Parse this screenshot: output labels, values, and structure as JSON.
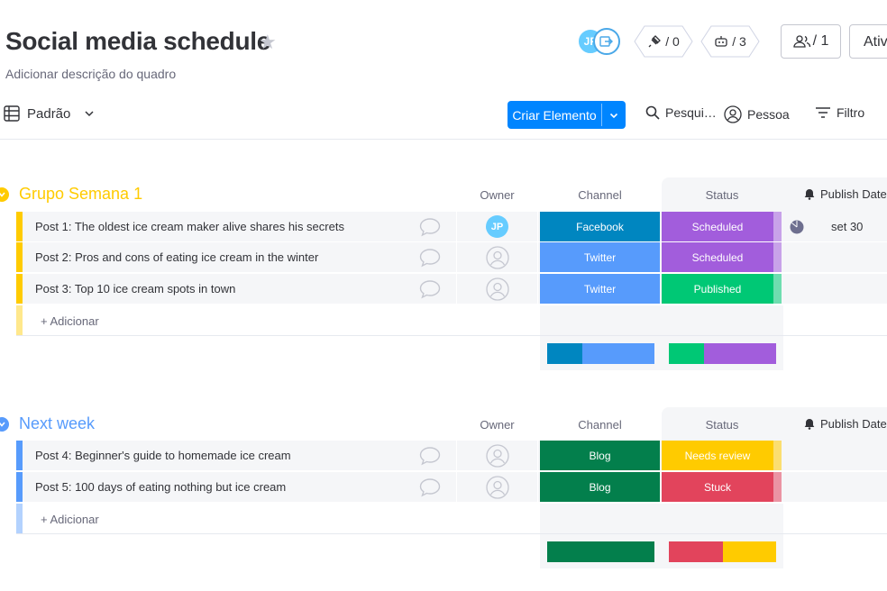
{
  "board": {
    "title": "Social media schedule",
    "description": "Adicionar descrição do quadro"
  },
  "header": {
    "avatar_initials": "JP",
    "integrations_count": "/ 0",
    "automations_count": "/ 3",
    "invite_count": "/ 1",
    "activity_label": "Ativ"
  },
  "toolbar": {
    "view_label": "Padrão",
    "new_item_label": "Criar Elemento",
    "search_label": "Pesqui…",
    "person_label": "Pessoa",
    "filter_label": "Filtro"
  },
  "columns": {
    "owner": "Owner",
    "channel": "Channel",
    "status": "Status",
    "publish_date": "Publish Date"
  },
  "colors": {
    "group1": "#ffcb00",
    "group2": "#579bfc",
    "facebook": "#0086c0",
    "twitter": "#579bfc",
    "blog": "#037f4c",
    "scheduled": "#a25ddc",
    "published": "#00c875",
    "needs_review": "#ffcb00",
    "stuck": "#e2445c",
    "accent": "#0085ff"
  },
  "groups": [
    {
      "title": "Grupo Semana 1",
      "add_label": "+ Adicionar",
      "items": [
        {
          "name": "Post 1: The oldest ice cream maker alive shares his secrets",
          "owner": "JP",
          "channel": "Facebook",
          "status": "Scheduled",
          "date": "set 30"
        },
        {
          "name": "Post 2: Pros and cons of eating ice cream in the winter",
          "owner": "",
          "channel": "Twitter",
          "status": "Scheduled",
          "date": ""
        },
        {
          "name": "Post 3: Top 10 ice cream spots in town",
          "owner": "",
          "channel": "Twitter",
          "status": "Published",
          "date": ""
        }
      ],
      "summary": {
        "channel": [
          {
            "label": "Facebook",
            "fraction": 0.33
          },
          {
            "label": "Twitter",
            "fraction": 0.67
          }
        ],
        "status": [
          {
            "label": "Published",
            "fraction": 0.33
          },
          {
            "label": "Scheduled",
            "fraction": 0.67
          }
        ]
      }
    },
    {
      "title": "Next week",
      "add_label": "+ Adicionar",
      "items": [
        {
          "name": "Post 4: Beginner's guide to homemade ice cream",
          "owner": "",
          "channel": "Blog",
          "status": "Needs review",
          "date": ""
        },
        {
          "name": "Post 5: 100 days of eating nothing but ice cream",
          "owner": "",
          "channel": "Blog",
          "status": "Stuck",
          "date": ""
        }
      ],
      "summary": {
        "channel": [
          {
            "label": "Blog",
            "fraction": 1.0
          }
        ],
        "status": [
          {
            "label": "Stuck",
            "fraction": 0.5
          },
          {
            "label": "Needs review",
            "fraction": 0.5
          }
        ]
      }
    }
  ]
}
